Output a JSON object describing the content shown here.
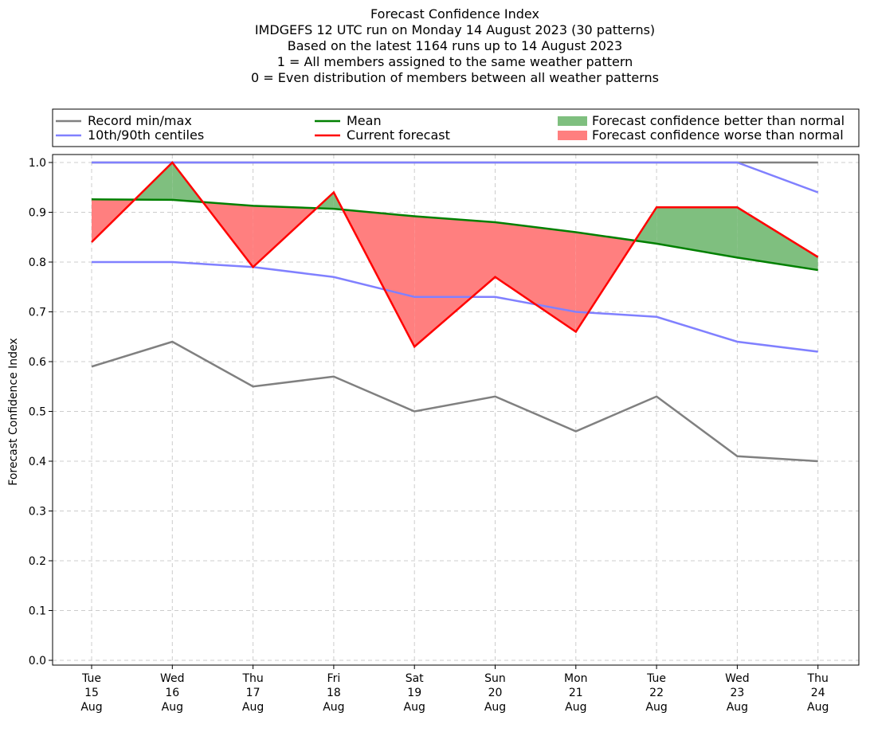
{
  "chart_data": {
    "type": "line",
    "title_lines": [
      "Forecast Confidence Index",
      "IMDGEFS 12 UTC run on Monday 14 August 2023 (30 patterns)",
      "Based on the latest 1164 runs up to 14 August 2023",
      "1 = All members assigned to the same weather pattern",
      "0 = Even distribution of members between all weather patterns"
    ],
    "ylabel": "Forecast Confidence Index",
    "xlabel": "",
    "ylim": [
      0,
      1.0
    ],
    "yticks": [
      "0.0",
      "0.1",
      "0.2",
      "0.3",
      "0.4",
      "0.5",
      "0.6",
      "0.7",
      "0.8",
      "0.9",
      "1.0"
    ],
    "categories": [
      [
        "Tue",
        "15",
        "Aug"
      ],
      [
        "Wed",
        "16",
        "Aug"
      ],
      [
        "Thu",
        "17",
        "Aug"
      ],
      [
        "Fri",
        "18",
        "Aug"
      ],
      [
        "Sat",
        "19",
        "Aug"
      ],
      [
        "Sun",
        "20",
        "Aug"
      ],
      [
        "Mon",
        "21",
        "Aug"
      ],
      [
        "Tue",
        "22",
        "Aug"
      ],
      [
        "Wed",
        "23",
        "Aug"
      ],
      [
        "Thu",
        "24",
        "Aug"
      ]
    ],
    "grid": true,
    "legend_position": "top, above plot",
    "series": [
      {
        "name": "Record min/max",
        "role": "record_min",
        "color": "#808080",
        "values": [
          0.59,
          0.64,
          0.55,
          0.57,
          0.5,
          0.53,
          0.46,
          0.53,
          0.41,
          0.4
        ]
      },
      {
        "name": "Record min/max",
        "role": "record_max",
        "color": "#808080",
        "values": [
          1.0,
          1.0,
          1.0,
          1.0,
          1.0,
          1.0,
          1.0,
          1.0,
          1.0,
          1.0
        ]
      },
      {
        "name": "10th/90th centiles",
        "role": "p10",
        "color": "#8080ff",
        "values": [
          0.8,
          0.8,
          0.79,
          0.77,
          0.73,
          0.73,
          0.7,
          0.69,
          0.64,
          0.62
        ]
      },
      {
        "name": "10th/90th centiles",
        "role": "p90",
        "color": "#8080ff",
        "values": [
          1.0,
          1.0,
          1.0,
          1.0,
          1.0,
          1.0,
          1.0,
          1.0,
          1.0,
          0.94
        ]
      },
      {
        "name": "Mean",
        "role": "mean",
        "color": "#008000",
        "values": [
          0.926,
          0.925,
          0.913,
          0.907,
          0.892,
          0.88,
          0.86,
          0.837,
          0.809,
          0.784
        ]
      },
      {
        "name": "Current forecast",
        "role": "forecast",
        "color": "#ff0000",
        "values": [
          0.84,
          1.0,
          0.79,
          0.94,
          0.63,
          0.77,
          0.66,
          0.91,
          0.91,
          0.81
        ]
      }
    ],
    "legend": [
      {
        "label": "Record min/max",
        "kind": "line",
        "color": "#808080"
      },
      {
        "label": "10th/90th centiles",
        "kind": "line",
        "color": "#8080ff"
      },
      {
        "label": "Mean",
        "kind": "line",
        "color": "#008000"
      },
      {
        "label": "Current forecast",
        "kind": "line",
        "color": "#ff0000"
      },
      {
        "label": "Forecast confidence better than normal",
        "kind": "patch",
        "color": "#7fbf7f"
      },
      {
        "label": "Forecast confidence worse than normal",
        "kind": "patch",
        "color": "#ff7f7f"
      }
    ],
    "fill_colors": {
      "better": "#7fbf7f",
      "worse": "#ff7f7f"
    }
  }
}
